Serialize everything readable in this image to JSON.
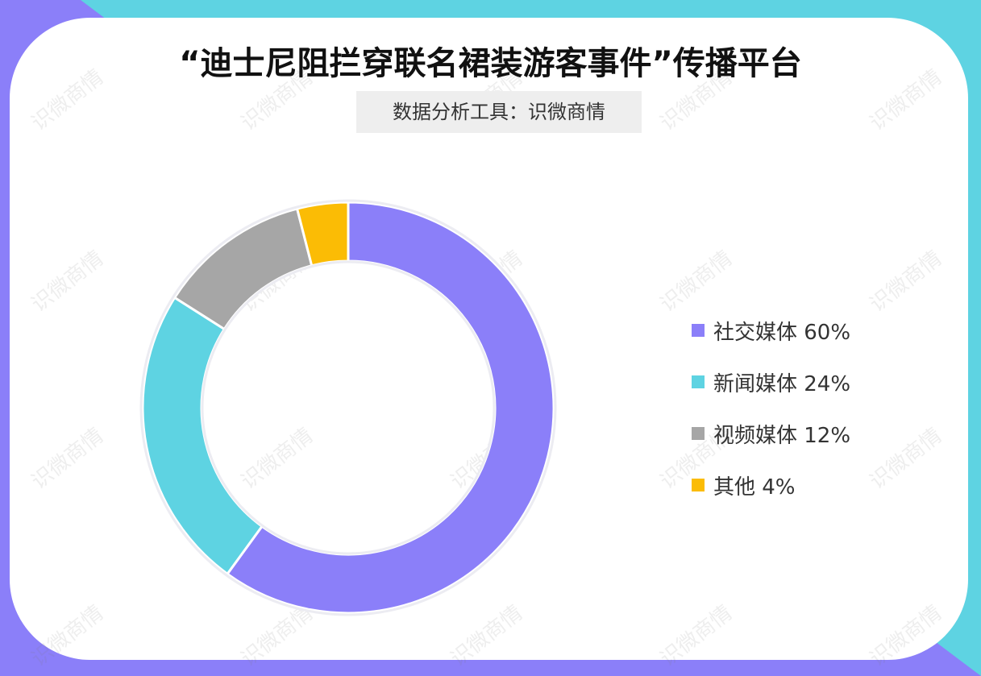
{
  "title": "“迪士尼阻拦穿联名裙装游客事件”传播平台",
  "subtitle": "数据分析工具：识微商情",
  "watermark": "识微商情",
  "colors": {
    "background_teal": "#5ed3e2",
    "background_purple": "#8b7ff9"
  },
  "chart_data": {
    "type": "pie",
    "donut": true,
    "categories": [
      "社交媒体",
      "新闻媒体",
      "视频媒体",
      "其他"
    ],
    "values": [
      60,
      24,
      12,
      4
    ],
    "unit": "%",
    "colors": [
      "#8b7ff9",
      "#5ed3e2",
      "#a6a6a6",
      "#fbbc05"
    ],
    "legend_labels": [
      "社交媒体 60%",
      "新闻媒体 24%",
      "视频媒体 12%",
      "其他 4%"
    ],
    "legend_position": "right",
    "start": "top, clockwise"
  }
}
